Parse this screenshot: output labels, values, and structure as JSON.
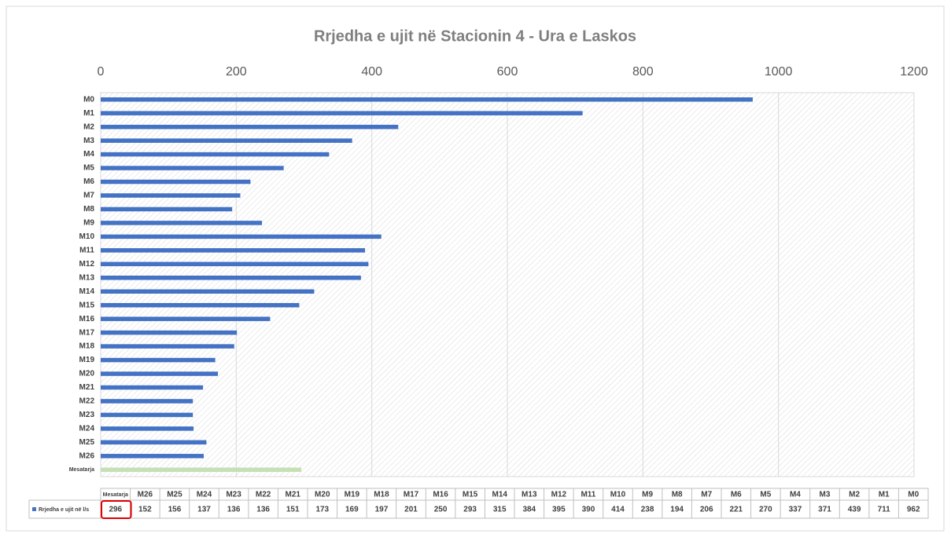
{
  "chart_data": {
    "type": "hbar",
    "title": "Rrjedha e ujit në Stacionin 4 - Ura e Laskos",
    "categories": [
      "M0",
      "M1",
      "M2",
      "M3",
      "M4",
      "M5",
      "M6",
      "M7",
      "M8",
      "M9",
      "M10",
      "M11",
      "M12",
      "M13",
      "M14",
      "M15",
      "M16",
      "M17",
      "M18",
      "M19",
      "M20",
      "M21",
      "M22",
      "M23",
      "M24",
      "M25",
      "M26",
      "Mesatarja"
    ],
    "series": [
      {
        "name": "Rrjedha e ujit në l/s",
        "color": "#4472c4",
        "values": [
          962,
          711,
          439,
          371,
          337,
          270,
          221,
          206,
          194,
          238,
          414,
          390,
          395,
          384,
          315,
          293,
          250,
          201,
          197,
          169,
          173,
          151,
          136,
          136,
          137,
          156,
          152,
          296
        ]
      }
    ],
    "bar_colors": [
      "#4472c4",
      "#4472c4",
      "#4472c4",
      "#4472c4",
      "#4472c4",
      "#4472c4",
      "#4472c4",
      "#4472c4",
      "#4472c4",
      "#4472c4",
      "#4472c4",
      "#4472c4",
      "#4472c4",
      "#4472c4",
      "#4472c4",
      "#4472c4",
      "#4472c4",
      "#4472c4",
      "#4472c4",
      "#4472c4",
      "#4472c4",
      "#4472c4",
      "#4472c4",
      "#4472c4",
      "#4472c4",
      "#4472c4",
      "#4472c4",
      "#c5e0b4"
    ],
    "xlim": [
      0,
      1200
    ],
    "xticks": [
      0,
      200,
      400,
      600,
      800,
      1000,
      1200
    ],
    "grid": true,
    "data_table": true
  }
}
